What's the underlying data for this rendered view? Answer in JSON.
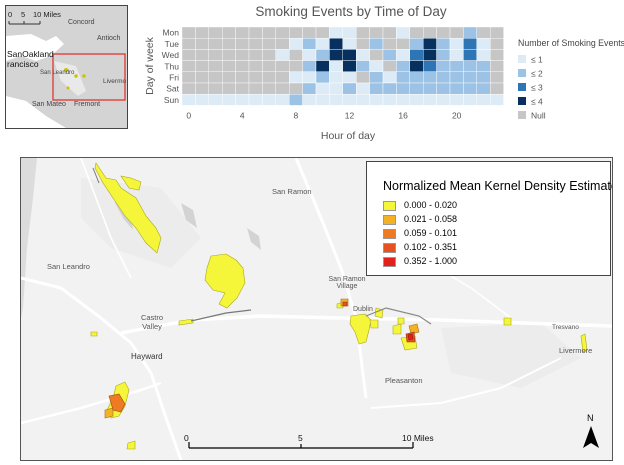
{
  "inset": {
    "scale_ticks": [
      "0",
      "5",
      "10 Miles"
    ],
    "places": [
      "Concord",
      "Antioch",
      "SanOakland",
      "rancisco",
      "San Leandro",
      "Livermo",
      "San Mateo",
      "Fremont"
    ],
    "colors": {
      "water": "#ffffff",
      "land": "#d4d4d4",
      "extent": "#e3342f"
    }
  },
  "chart_data": {
    "type": "heatmap",
    "title": "Smoking Events by Time of Day",
    "xlabel": "Hour of day",
    "ylabel": "Day of week",
    "rows": [
      "Mon",
      "Tue",
      "Wed",
      "Thu",
      "Fri",
      "Sat",
      "Sun"
    ],
    "x_ticks": [
      0,
      4,
      8,
      12,
      16,
      20
    ],
    "hours": [
      0,
      1,
      2,
      3,
      4,
      5,
      6,
      7,
      8,
      9,
      10,
      11,
      12,
      13,
      14,
      15,
      16,
      17,
      18,
      19,
      20,
      21,
      22,
      23
    ],
    "legend_title": "Number of Smoking Events",
    "legend": [
      {
        "label": "≤ 1",
        "color": "#ddebf7"
      },
      {
        "label": "≤ 2",
        "color": "#9cc3e5"
      },
      {
        "label": "≤ 3",
        "color": "#2e75b6"
      },
      {
        "label": "≤ 4",
        "color": "#08305e"
      },
      {
        "label": "Null",
        "color": "#c6c6c6"
      }
    ],
    "values": [
      [
        -1,
        -1,
        -1,
        -1,
        -1,
        -1,
        -1,
        -1,
        -1,
        -1,
        -1,
        1,
        1,
        -1,
        -1,
        -1,
        1,
        -1,
        -1,
        -1,
        -1,
        2,
        -1,
        -1
      ],
      [
        -1,
        -1,
        -1,
        -1,
        -1,
        -1,
        -1,
        -1,
        1,
        2,
        1,
        4,
        1,
        -1,
        2,
        -1,
        -1,
        2,
        4,
        2,
        1,
        3,
        1,
        -1
      ],
      [
        -1,
        -1,
        -1,
        -1,
        -1,
        -1,
        -1,
        1,
        -1,
        1,
        2,
        4,
        4,
        1,
        -1,
        2,
        1,
        3,
        4,
        2,
        1,
        3,
        1,
        -1
      ],
      [
        -1,
        -1,
        -1,
        -1,
        -1,
        -1,
        -1,
        -1,
        -1,
        2,
        4,
        1,
        4,
        2,
        1,
        -1,
        2,
        4,
        3,
        2,
        2,
        2,
        2,
        -1
      ],
      [
        -1,
        -1,
        -1,
        -1,
        -1,
        -1,
        -1,
        -1,
        1,
        1,
        2,
        1,
        1,
        -1,
        2,
        1,
        2,
        2,
        2,
        2,
        2,
        2,
        2,
        -1
      ],
      [
        -1,
        -1,
        -1,
        -1,
        -1,
        -1,
        -1,
        -1,
        -1,
        2,
        1,
        1,
        2,
        1,
        2,
        2,
        2,
        2,
        2,
        2,
        2,
        2,
        2,
        -1
      ],
      [
        1,
        1,
        1,
        1,
        1,
        1,
        1,
        1,
        2,
        1,
        1,
        1,
        1,
        1,
        1,
        1,
        1,
        1,
        1,
        1,
        1,
        1,
        1,
        1
      ]
    ],
    "null_value": -1
  },
  "map": {
    "legend_title": "Normalized Mean Kernel Density Estimate",
    "classes": [
      {
        "label": "0.000 - 0.020",
        "color": "#f5f53a"
      },
      {
        "label": "0.021 - 0.058",
        "color": "#f3b226"
      },
      {
        "label": "0.059 - 0.101",
        "color": "#ee7a21"
      },
      {
        "label": "0.102 - 0.351",
        "color": "#e5511f"
      },
      {
        "label": "0.352 - 1.000",
        "color": "#e3201c"
      }
    ],
    "places": [
      "San Ramon",
      "San Leandro",
      "San Ramon Village",
      "Dublin",
      "Castro Valley",
      "Hayward",
      "Pleasanton",
      "Tresvano",
      "Livermore"
    ],
    "scale_ticks": [
      "0",
      "5",
      "10 Miles"
    ],
    "north_label": "N"
  }
}
